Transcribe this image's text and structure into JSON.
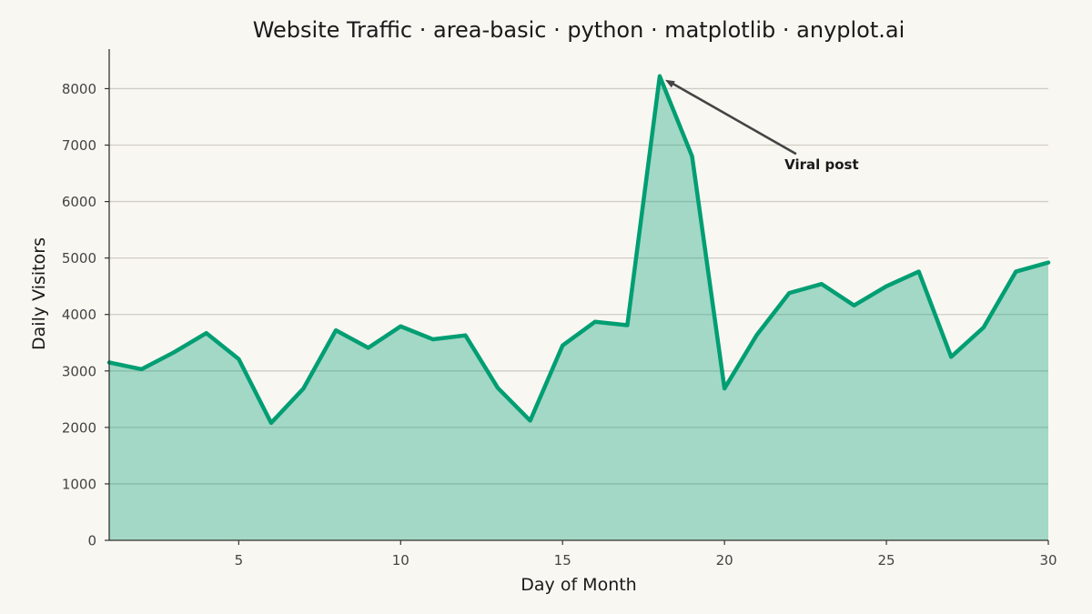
{
  "chart_data": {
    "type": "area",
    "title": "Website Traffic · area-basic · python · matplotlib · anyplot.ai",
    "xlabel": "Day of Month",
    "ylabel": "Daily Visitors",
    "xlim": [
      1,
      30
    ],
    "ylim": [
      0,
      8700
    ],
    "xticks": [
      5,
      10,
      15,
      20,
      25,
      30
    ],
    "yticks": [
      0,
      1000,
      2000,
      3000,
      4000,
      5000,
      6000,
      7000,
      8000
    ],
    "grid": "y",
    "legend": "none",
    "series": [
      {
        "color": "#009E73",
        "fill_opacity": 0.35,
        "x": [
          1,
          2,
          3,
          4,
          5,
          6,
          7,
          8,
          9,
          10,
          11,
          12,
          13,
          14,
          15,
          16,
          17,
          18,
          19,
          20,
          21,
          22,
          23,
          24,
          25,
          26,
          27,
          28,
          29,
          30
        ],
        "y": [
          3150,
          3030,
          3330,
          3670,
          3210,
          2080,
          2690,
          3720,
          3410,
          3790,
          3560,
          3630,
          2700,
          2120,
          3450,
          3870,
          3810,
          8220,
          6800,
          2690,
          3640,
          4380,
          4540,
          4160,
          4500,
          4760,
          3250,
          3770,
          4760,
          4920
        ]
      }
    ],
    "annotations": [
      {
        "text": "Viral post",
        "x": 18,
        "y": 8220,
        "text_x": 23,
        "text_y": 6650
      }
    ]
  }
}
